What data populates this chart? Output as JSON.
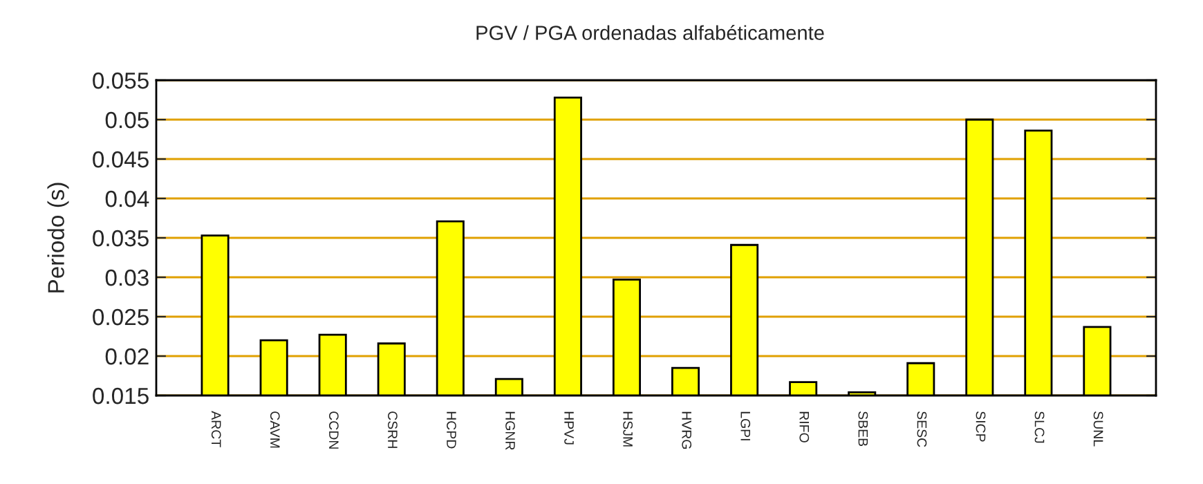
{
  "chart_data": {
    "type": "bar",
    "title": "PGV / PGA ordenadas alfabéticamente",
    "ylabel": "Periodo (s)",
    "categories": [
      "ARCT",
      "CAVM",
      "CCDN",
      "CSRH",
      "HCPD",
      "HGNR",
      "HPVJ",
      "HSJM",
      "HVRG",
      "LGPI",
      "RIFO",
      "SBEB",
      "SESC",
      "SICP",
      "SLCJ",
      "SUNL"
    ],
    "values": [
      0.0353,
      0.022,
      0.0227,
      0.0216,
      0.0371,
      0.0171,
      0.0528,
      0.0297,
      0.0185,
      0.0341,
      0.0167,
      0.0154,
      0.0191,
      0.05,
      0.0486,
      0.0237
    ],
    "color": "#ffff00",
    "ylim": [
      0.015,
      0.055
    ],
    "yticks": [
      0.015,
      0.02,
      0.025,
      0.03,
      0.035,
      0.04,
      0.045,
      0.05,
      0.055
    ],
    "grid": "y"
  }
}
